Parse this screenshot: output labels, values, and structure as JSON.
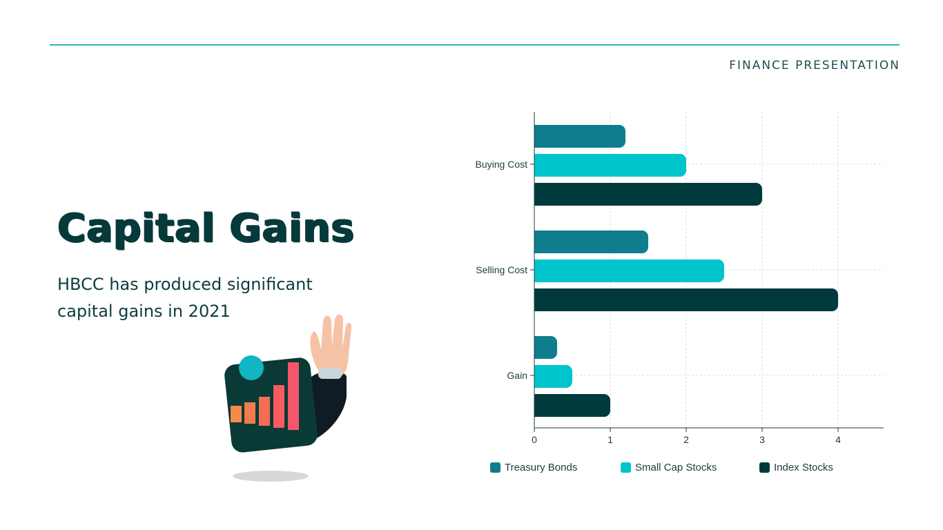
{
  "header": {
    "label": "FINANCE PRESENTATION"
  },
  "title": "Capital Gains",
  "subtitle": "HBCC has produced significant capital gains in 2021",
  "colors": {
    "accent": "#2bb3bd",
    "dark": "#06393a",
    "treasury": "#0e7e8c",
    "smallcap": "#00c4cc",
    "index": "#003a3c"
  },
  "chart_data": {
    "type": "bar",
    "orientation": "horizontal",
    "categories": [
      "Buying Cost",
      "Selling Cost",
      "Gain"
    ],
    "series": [
      {
        "name": "Treasury Bonds",
        "values": [
          1.2,
          1.5,
          0.3
        ],
        "color": "#0e7e8c"
      },
      {
        "name": "Small Cap Stocks",
        "values": [
          2,
          2.5,
          0.5
        ],
        "color": "#00c4cc"
      },
      {
        "name": "Index Stocks",
        "values": [
          3,
          4,
          1
        ],
        "color": "#003a3c"
      }
    ],
    "xlim": [
      0,
      4.6
    ],
    "xticks": [
      "0",
      "1",
      "2",
      "3",
      "4"
    ],
    "grid": true,
    "legend_position": "bottom"
  }
}
